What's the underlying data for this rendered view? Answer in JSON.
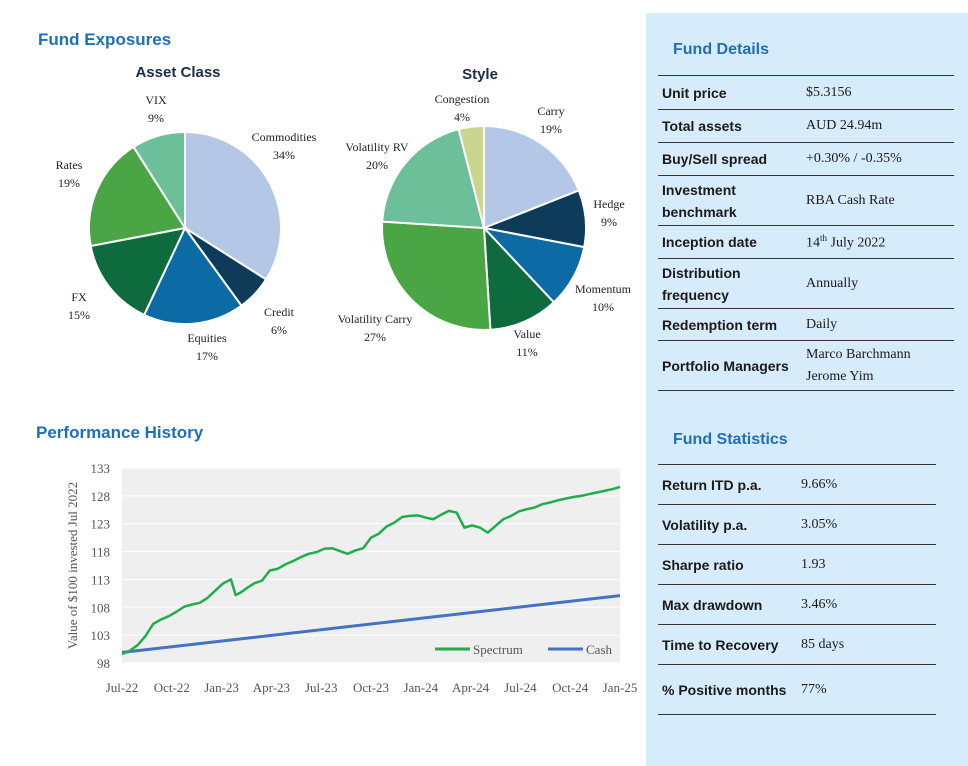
{
  "exposures_title": "Fund Exposures",
  "performance_title": "Performance History",
  "chart_data": [
    {
      "type": "pie",
      "title": "Asset Class",
      "labels": [
        "Commodities",
        "Credit",
        "Equities",
        "FX",
        "Rates",
        "VIX"
      ],
      "values": [
        34,
        6,
        17,
        15,
        19,
        9
      ],
      "percent_labels": [
        "34%",
        "6%",
        "17%",
        "15%",
        "19%",
        "9%"
      ],
      "colors": [
        "#b4c7e7",
        "#0d3b59",
        "#0c6aa5",
        "#0e6b3e",
        "#4aa645",
        "#6dbf9a"
      ]
    },
    {
      "type": "pie",
      "title": "Style",
      "labels": [
        "Carry",
        "Hedge",
        "Momentum",
        "Value",
        "Volatility Carry",
        "Volatility RV",
        "Congestion"
      ],
      "values": [
        19,
        9,
        10,
        11,
        27,
        20,
        4
      ],
      "percent_labels": [
        "19%",
        "9%",
        "10%",
        "11%",
        "27%",
        "20%",
        "4%"
      ],
      "colors": [
        "#b4c7e7",
        "#0d3b59",
        "#0c6aa5",
        "#0e6b3e",
        "#4aa645",
        "#6dbf9a",
        "#c9d68e"
      ]
    },
    {
      "type": "line",
      "title": "Performance History",
      "ylabel": "Value of $100 invested Jul 2022",
      "ylim": [
        98,
        133
      ],
      "yticks": [
        "98",
        "103",
        "108",
        "113",
        "118",
        "123",
        "128",
        "133"
      ],
      "xticks": [
        "Jul-22",
        "Oct-22",
        "Jan-23",
        "Apr-23",
        "Jul-23",
        "Oct-23",
        "Jan-24",
        "Apr-24",
        "Jul-24",
        "Oct-24",
        "Jan-25"
      ],
      "series": [
        {
          "name": "Spectrum",
          "color": "#1fae4b",
          "x": [
            0,
            0.5,
            1,
            1.5,
            2,
            2.5,
            3,
            3.5,
            4,
            4.5,
            5,
            5.5,
            6,
            6.5,
            7,
            7.3,
            7.6,
            8,
            8.5,
            9,
            9.5,
            10,
            10.5,
            11,
            11.5,
            12,
            12.5,
            13,
            13.5,
            14,
            14.5,
            15,
            15.5,
            16,
            16.5,
            17,
            17.5,
            18,
            18.5,
            19,
            19.5,
            20,
            20.5,
            21,
            21.5,
            22,
            22.5,
            23,
            23.5,
            24,
            24.5,
            25,
            25.5,
            26,
            26.5,
            27,
            27.5,
            28,
            28.5,
            29,
            29.5,
            30,
            30.5,
            31,
            31.5,
            32
          ],
          "values": [
            99.6,
            100.2,
            101.2,
            102.8,
            105,
            105.8,
            106.4,
            107.2,
            108.1,
            108.5,
            108.8,
            109.7,
            111,
            112.3,
            113,
            110.2,
            110.6,
            111.4,
            112.3,
            112.8,
            114.6,
            114.9,
            115.7,
            116.3,
            117,
            117.6,
            117.9,
            118.5,
            118.6,
            118.1,
            117.6,
            118.2,
            118.6,
            120.5,
            121.2,
            122.5,
            123.2,
            124.2,
            124.4,
            124.5,
            124.1,
            123.8,
            124.6,
            125.3,
            125,
            122.3,
            122.7,
            122.3,
            121.4,
            122.6,
            123.8,
            124.4,
            125.2,
            125.6,
            125.9,
            126.5,
            126.8,
            127.2,
            127.5,
            127.8,
            128,
            128.3,
            128.6,
            128.9,
            129.2,
            129.6
          ]
        },
        {
          "name": "Cash",
          "color": "#4472c4",
          "x": [
            0,
            32
          ],
          "values": [
            99.9,
            110.1
          ]
        }
      ]
    }
  ],
  "fund_details": {
    "heading": "Fund Details",
    "rows": [
      {
        "label": "Unit price",
        "value": "$5.3156"
      },
      {
        "label": "Total assets",
        "value": "AUD 24.94m"
      },
      {
        "label": "Buy/Sell spread",
        "value": "+0.30% / -0.35%"
      },
      {
        "label": "Investment benchmark",
        "value": "RBA Cash Rate"
      },
      {
        "label": "Inception date",
        "value": "14",
        "sup": "th",
        "value_rest": " July 2022"
      },
      {
        "label": "Distribution frequency",
        "value": "Annually"
      },
      {
        "label": "Redemption term",
        "value": "Daily"
      },
      {
        "label": "Portfolio Managers",
        "value": "Marco Barchmann",
        "value2": "Jerome Yim"
      }
    ]
  },
  "fund_statistics": {
    "heading": "Fund Statistics",
    "rows": [
      {
        "label": "Return ITD p.a.",
        "value": "9.66%"
      },
      {
        "label": "Volatility p.a.",
        "value": "3.05%"
      },
      {
        "label": "Sharpe ratio",
        "value": "1.93"
      },
      {
        "label": "Max drawdown",
        "value": "3.46%"
      },
      {
        "label": "Time to Recovery",
        "value": "85 days"
      },
      {
        "label": "% Positive months",
        "value": "77%"
      }
    ]
  }
}
